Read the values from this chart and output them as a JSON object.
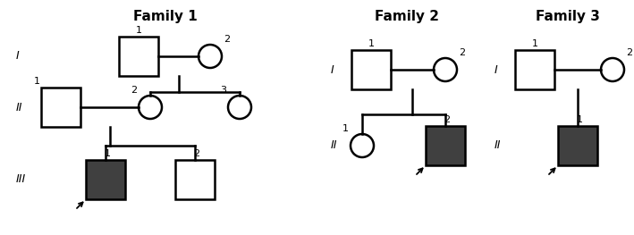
{
  "title_family1": "Family 1",
  "title_family2": "Family 2",
  "title_family3": "Family 3",
  "bg_color": "#ffffff",
  "line_color": "#000000",
  "fill_affected": "#404040",
  "fill_unaffected": "#ffffff",
  "line_width": 1.8,
  "title_fontsize": 11,
  "label_fontsize": 8,
  "generation_fontsize": 9,
  "sz": 22,
  "cr": 13
}
